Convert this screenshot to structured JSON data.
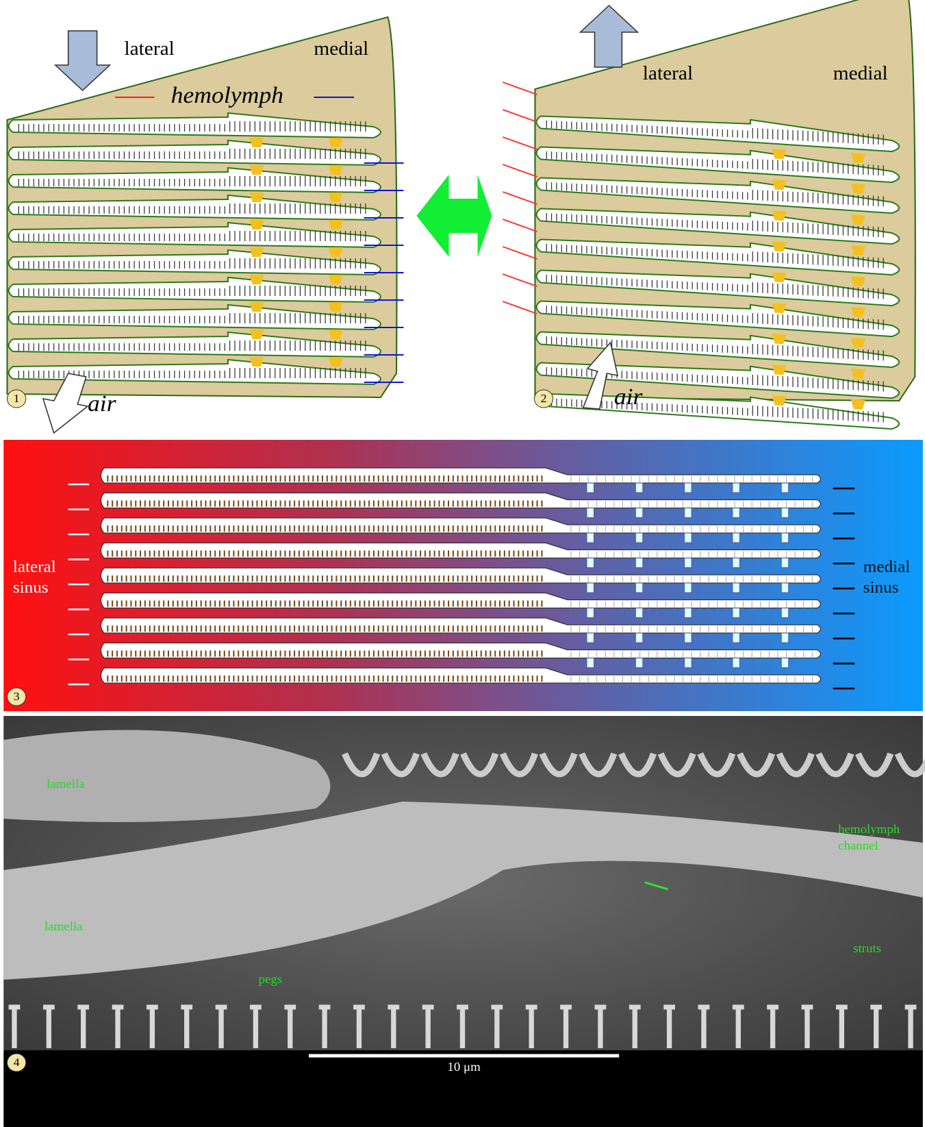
{
  "panels": [
    {
      "number": "1",
      "lateral": "lateral",
      "medial": "medial",
      "flow": "hemolymph",
      "air": "air"
    },
    {
      "number": "2",
      "lateral": "lateral",
      "medial": "medial",
      "air": "air"
    },
    {
      "number": "3",
      "lateral": [
        "lateral",
        "sinus"
      ],
      "medial": [
        "medial",
        "sinus"
      ]
    },
    {
      "number": "4",
      "labels": [
        "lamella",
        "lamella",
        "hemolymph",
        "channel",
        "struts",
        "pegs"
      ],
      "scale": "10 μm"
    }
  ]
}
